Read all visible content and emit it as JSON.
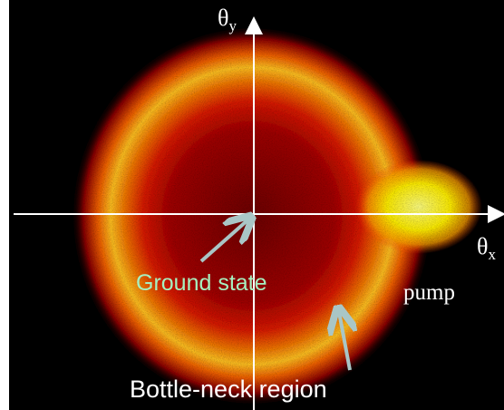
{
  "axes": {
    "y": {
      "symbol": "θ",
      "subscript": "y"
    },
    "x": {
      "symbol": "θ",
      "subscript": "x"
    }
  },
  "annotations": {
    "ground_state": "Ground state",
    "pump": "pump",
    "bottleneck": "Bottle-neck region"
  }
}
